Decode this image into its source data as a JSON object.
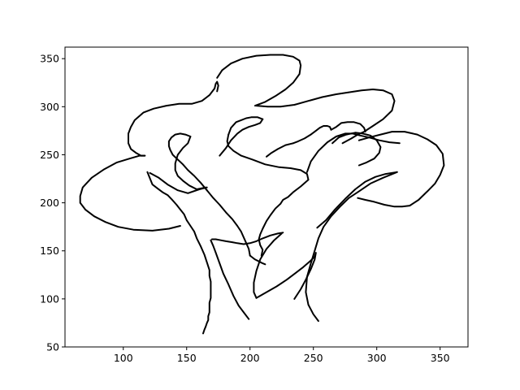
{
  "chart_data": {
    "type": "line",
    "title": "",
    "xlabel": "",
    "ylabel": "",
    "xlim": [
      54,
      372
    ],
    "ylim": [
      50,
      362
    ],
    "xticks": [
      100,
      150,
      200,
      250,
      300,
      350
    ],
    "yticks": [
      50,
      100,
      150,
      200,
      250,
      300,
      350
    ],
    "xtick_labels": [
      "100",
      "150",
      "200",
      "250",
      "300",
      "350"
    ],
    "ytick_labels": [
      "50",
      "100",
      "150",
      "200",
      "250",
      "300",
      "350"
    ],
    "grid": false,
    "legend": null,
    "line_color": "#000000",
    "series": [
      {
        "x": [
          163,
          164,
          165,
          166,
          167,
          167,
          168,
          168,
          168,
          169,
          169,
          169,
          169,
          168,
          168,
          166,
          164,
          161,
          158,
          156,
          153,
          150,
          148,
          145,
          142,
          138,
          135,
          131,
          127,
          123,
          119
        ],
        "y": [
          64,
          68,
          71,
          75,
          78,
          82,
          86,
          91,
          96,
          101,
          106,
          112,
          118,
          124,
          130,
          138,
          146,
          155,
          163,
          170,
          176,
          182,
          188,
          193,
          198,
          204,
          208,
          211,
          215,
          219,
          232
        ]
      },
      {
        "x": [
          199,
          195,
          191,
          187,
          183,
          179,
          176,
          173,
          171,
          169
        ],
        "y": [
          79,
          86,
          93,
          103,
          115,
          126,
          137,
          148,
          155,
          161
        ]
      },
      {
        "x": [
          170,
          173,
          177,
          181,
          186,
          190,
          195,
          200,
          205,
          210,
          216,
          222,
          226
        ],
        "y": [
          162,
          162,
          161,
          160,
          159,
          158,
          157,
          158,
          160,
          163,
          166,
          168,
          169
        ]
      },
      {
        "x": [
          225,
          219,
          213,
          208,
          205,
          203,
          203,
          205
        ],
        "y": [
          168,
          161,
          152,
          141,
          129,
          117,
          107,
          101
        ]
      },
      {
        "x": [
          205,
          213,
          221,
          229,
          236,
          242,
          248,
          251,
          252,
          251,
          248,
          244,
          240,
          235
        ],
        "y": [
          101,
          107,
          113,
          120,
          127,
          133,
          140,
          144,
          148,
          141,
          131,
          120,
          110,
          100
        ]
      },
      {
        "x": [
          254,
          250,
          246,
          244,
          245,
          248,
          251,
          254,
          258,
          264,
          271,
          278,
          286,
          295,
          305,
          316
        ],
        "y": [
          77,
          84,
          94,
          107,
          123,
          137,
          150,
          163,
          175,
          186,
          196,
          205,
          212,
          220,
          226,
          232
        ]
      },
      {
        "x": [
          253,
          260,
          267,
          275,
          283,
          291,
          299,
          307,
          316
        ],
        "y": [
          174,
          182,
          193,
          204,
          214,
          222,
          227,
          230,
          232
        ]
      },
      {
        "x": [
          285,
          291,
          298,
          306,
          314,
          320,
          326,
          333,
          340,
          346,
          350,
          353,
          352,
          347,
          340,
          332,
          322,
          312,
          303,
          294,
          286
        ],
        "y": [
          205,
          203,
          201,
          198,
          196,
          196,
          197,
          203,
          212,
          220,
          229,
          239,
          251,
          260,
          266,
          271,
          274,
          274,
          271,
          268,
          265
        ]
      },
      {
        "x": [
          286,
          292,
          298,
          302,
          303,
          300,
          295,
          289,
          283,
          276,
          270,
          265
        ],
        "y": [
          239,
          242,
          246,
          252,
          258,
          265,
          270,
          272,
          273,
          271,
          268,
          262
        ]
      },
      {
        "x": [
          273,
          280,
          285,
          290,
          297,
          305,
          312,
          314,
          312,
          305,
          297,
          288,
          278,
          268,
          257,
          246,
          235,
          224,
          214,
          205
        ],
        "y": [
          262,
          267,
          271,
          274,
          280,
          287,
          296,
          306,
          313,
          317,
          318,
          317,
          315,
          313,
          310,
          306,
          302,
          300,
          300,
          301
        ]
      },
      {
        "x": [
          204,
          212,
          220,
          228,
          234,
          239,
          240,
          239,
          234,
          226,
          216,
          205,
          194,
          185,
          178,
          174
        ],
        "y": [
          301,
          305,
          311,
          318,
          325,
          334,
          343,
          348,
          352,
          354,
          354,
          353,
          350,
          345,
          338,
          330
        ]
      },
      {
        "x": [
          174,
          175,
          174,
          173,
          172,
          168,
          162,
          154,
          144,
          134,
          124,
          116,
          109,
          106,
          104,
          104,
          106,
          110,
          114,
          117
        ],
        "y": [
          316,
          322,
          326,
          324,
          319,
          312,
          306,
          303,
          303,
          301,
          298,
          294,
          286,
          279,
          272,
          262,
          256,
          252,
          249,
          249
        ]
      },
      {
        "x": [
          117,
          113,
          105,
          95,
          85,
          75,
          68,
          66,
          66,
          70,
          77,
          86,
          96,
          108,
          123,
          136,
          145
        ],
        "y": [
          249,
          249,
          246,
          242,
          235,
          226,
          216,
          207,
          200,
          193,
          186,
          180,
          175,
          172,
          171,
          173,
          176
        ]
      },
      {
        "x": [
          121,
          128,
          135,
          143,
          151,
          160,
          166
        ],
        "y": [
          231,
          226,
          219,
          213,
          210,
          214,
          216
        ]
      },
      {
        "x": [
          165,
          158,
          152,
          147,
          143,
          141,
          141,
          143,
          147,
          151,
          153
        ],
        "y": [
          216,
          214,
          218,
          223,
          228,
          234,
          241,
          250,
          257,
          262,
          269
        ]
      },
      {
        "x": [
          153,
          149,
          145,
          141,
          138,
          136,
          136,
          137,
          139,
          143,
          147,
          151,
          156,
          161,
          166
        ],
        "y": [
          269,
          271,
          272,
          271,
          268,
          264,
          259,
          255,
          250,
          245,
          240,
          234,
          228,
          221,
          213
        ]
      },
      {
        "x": [
          166,
          171,
          176,
          181,
          186,
          190,
          193,
          196,
          199,
          200
        ],
        "y": [
          213,
          205,
          198,
          190,
          183,
          176,
          170,
          161,
          152,
          145
        ]
      },
      {
        "x": [
          200,
          202,
          204,
          207,
          210,
          212
        ],
        "y": [
          145,
          143,
          141,
          139,
          137,
          136
        ]
      },
      {
        "x": [
          176,
          181,
          185,
          190,
          194,
          199,
          204,
          208,
          210
        ],
        "y": [
          249,
          257,
          265,
          272,
          276,
          279,
          281,
          283,
          287
        ]
      },
      {
        "x": [
          210,
          206,
          201,
          197,
          193,
          189,
          185,
          183
        ],
        "y": [
          287,
          289,
          289,
          288,
          286,
          284,
          278,
          271
        ]
      },
      {
        "x": [
          183,
          182,
          183,
          187,
          193,
          202,
          212,
          223,
          232,
          240,
          245,
          246
        ],
        "y": [
          271,
          264,
          259,
          254,
          249,
          245,
          240,
          237,
          236,
          234,
          230,
          224
        ]
      },
      {
        "x": [
          246,
          240,
          234,
          230,
          226,
          224
        ],
        "y": [
          224,
          217,
          211,
          206,
          203,
          199
        ]
      },
      {
        "x": [
          224,
          220,
          216,
          213,
          210,
          208,
          207,
          208,
          210,
          209
        ],
        "y": [
          199,
          194,
          187,
          181,
          173,
          167,
          162,
          156,
          151,
          145
        ]
      },
      {
        "x": [
          213,
          217,
          222,
          228,
          234
        ],
        "y": [
          248,
          252,
          256,
          260,
          262
        ]
      },
      {
        "x": [
          234,
          238,
          243,
          248,
          252,
          255,
          258,
          261,
          263,
          264
        ],
        "y": [
          262,
          264,
          267,
          271,
          275,
          278,
          280,
          280,
          279,
          276
        ]
      },
      {
        "x": [
          264,
          268,
          272,
          277,
          282,
          287,
          290,
          291
        ],
        "y": [
          276,
          279,
          283,
          284,
          284,
          282,
          278,
          274
        ]
      },
      {
        "x": [
          245,
          248,
          254,
          261,
          268,
          275,
          281,
          287,
          294,
          302,
          310,
          318
        ],
        "y": [
          232,
          243,
          254,
          263,
          269,
          272,
          272,
          270,
          268,
          265,
          263,
          262
        ]
      }
    ]
  }
}
